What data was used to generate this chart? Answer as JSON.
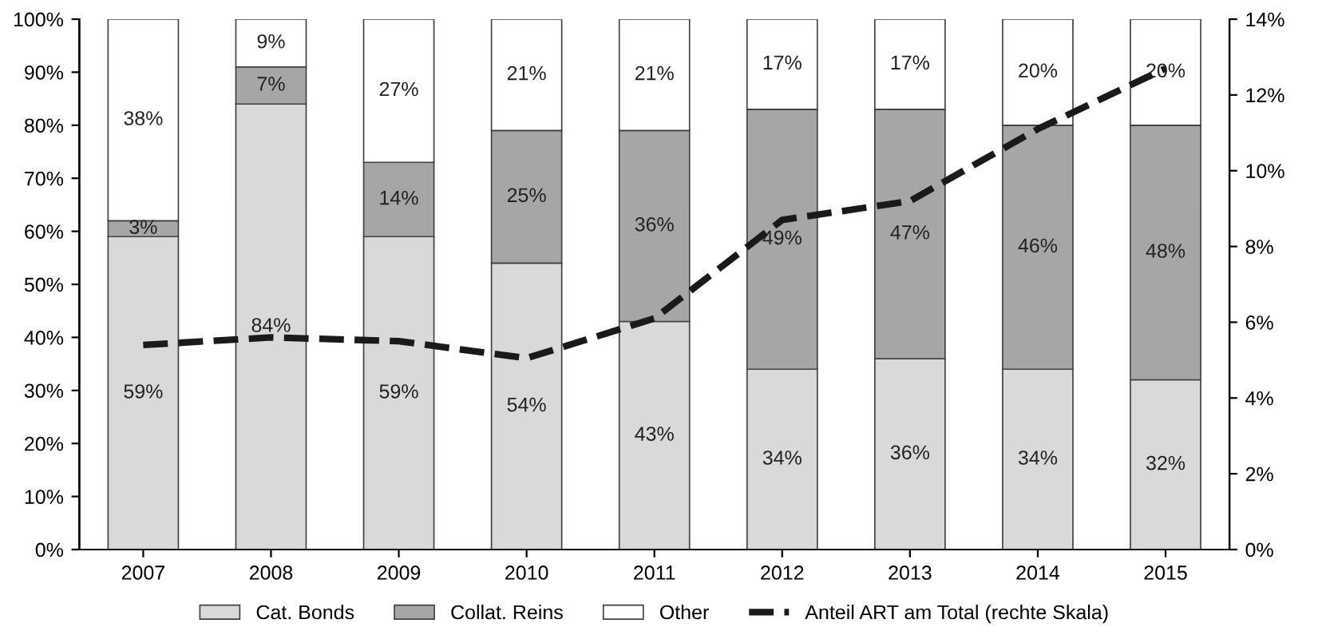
{
  "chart_data": {
    "type": "bar",
    "stacked": true,
    "categories": [
      "2007",
      "2008",
      "2009",
      "2010",
      "2011",
      "2012",
      "2013",
      "2014",
      "2015"
    ],
    "series": [
      {
        "name": "Cat. Bonds",
        "color": "#d9d9d9",
        "values": [
          59,
          84,
          59,
          54,
          43,
          34,
          36,
          34,
          32
        ],
        "value_labels": [
          "59%",
          "84%",
          "59%",
          "54%",
          "43%",
          "34%",
          "36%",
          "34%",
          "32%"
        ]
      },
      {
        "name": "Collat. Reins",
        "color": "#a6a6a6",
        "values": [
          3,
          7,
          14,
          25,
          36,
          49,
          47,
          46,
          48
        ],
        "value_labels": [
          "3%",
          "7%",
          "14%",
          "25%",
          "36%",
          "49%",
          "47%",
          "46%",
          "48%"
        ]
      },
      {
        "name": "Other",
        "color": "#ffffff",
        "values": [
          38,
          9,
          27,
          21,
          21,
          17,
          17,
          20,
          20
        ],
        "value_labels": [
          "38%",
          "9%",
          "27%",
          "21%",
          "21%",
          "17%",
          "17%",
          "20%",
          "20%"
        ]
      },
      {
        "name": "Anteil ART am Total (rechte Skala)",
        "type": "line",
        "axis": "y2",
        "color": "#1a1a1a",
        "line_style": "dashed",
        "values": [
          5.4,
          5.6,
          5.5,
          5.05,
          6.1,
          8.7,
          9.2,
          11.1,
          12.7
        ]
      }
    ],
    "ylim": [
      0,
      100
    ],
    "yticks": [
      {
        "value": 0,
        "label": "0%"
      },
      {
        "value": 10,
        "label": "10%"
      },
      {
        "value": 20,
        "label": "20%"
      },
      {
        "value": 30,
        "label": "30%"
      },
      {
        "value": 40,
        "label": "40%"
      },
      {
        "value": 50,
        "label": "50%"
      },
      {
        "value": 60,
        "label": "60%"
      },
      {
        "value": 70,
        "label": "70%"
      },
      {
        "value": 80,
        "label": "80%"
      },
      {
        "value": 90,
        "label": "90%"
      },
      {
        "value": 100,
        "label": "100%"
      }
    ],
    "y2lim": [
      0,
      14
    ],
    "y2ticks": [
      {
        "value": 0,
        "label": "0%"
      },
      {
        "value": 2,
        "label": "2%"
      },
      {
        "value": 4,
        "label": "4%"
      },
      {
        "value": 6,
        "label": "6%"
      },
      {
        "value": 8,
        "label": "8%"
      },
      {
        "value": 10,
        "label": "10%"
      },
      {
        "value": 12,
        "label": "12%"
      },
      {
        "value": 14,
        "label": "14%"
      }
    ],
    "grid": false,
    "legend": "bottom"
  }
}
